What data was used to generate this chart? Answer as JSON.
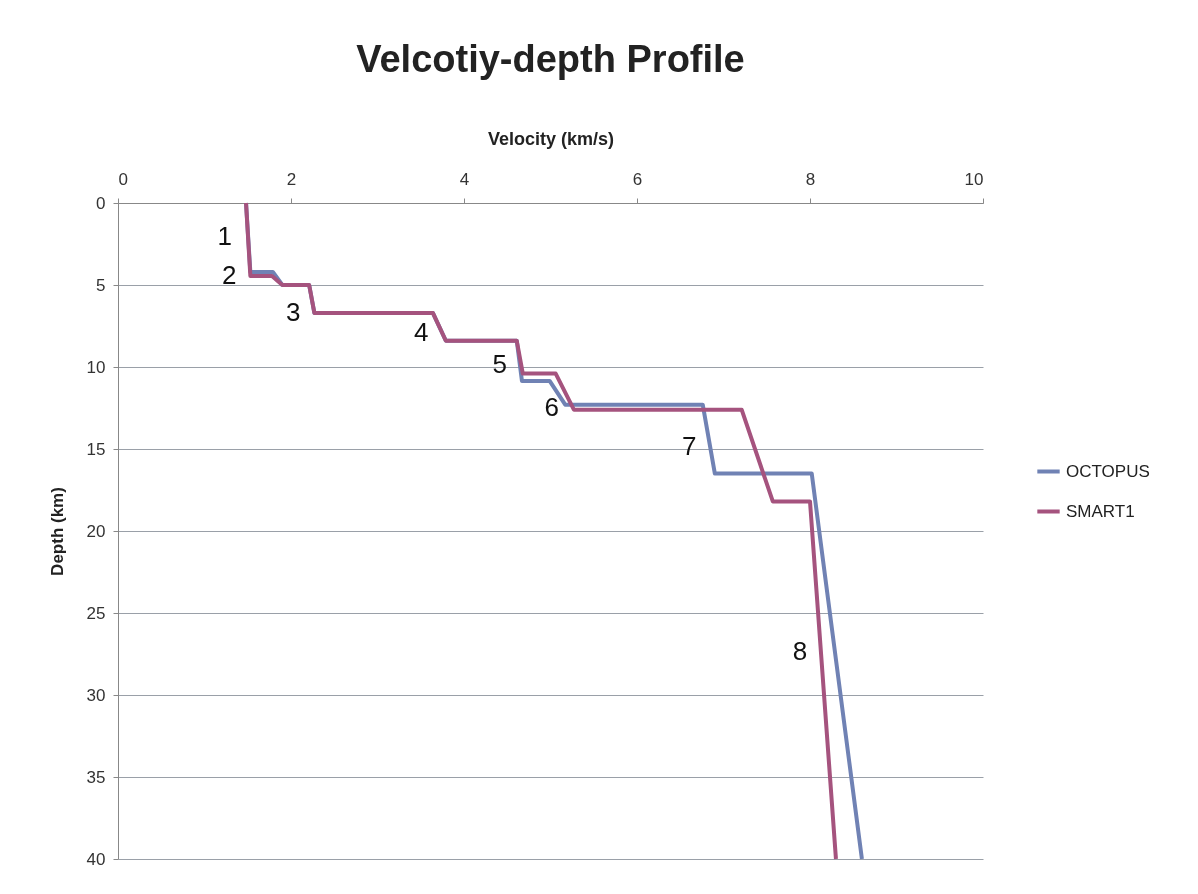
{
  "chart_data": {
    "type": "line",
    "title": "Velcotiy-depth Profile",
    "xlabel": "Velocity (km/s)",
    "ylabel": "Depth (km)",
    "xlim": [
      0,
      10
    ],
    "xticks": [
      0,
      2,
      4,
      6,
      8,
      10
    ],
    "ylim": [
      40,
      0
    ],
    "yticks": [
      0,
      5,
      10,
      15,
      20,
      25,
      30,
      35,
      40
    ],
    "grid": "y",
    "legend": "right",
    "series": [
      {
        "name": "OCTOPUS",
        "color": "#7082b4",
        "x": [
          1.48,
          1.53,
          1.79,
          1.9,
          2.21,
          2.27,
          3.64,
          3.79,
          4.61,
          4.67,
          4.99,
          5.17,
          6.76,
          6.9,
          8.02,
          8.6
        ],
        "values": [
          0,
          4.2,
          4.2,
          5.0,
          5.0,
          6.7,
          6.7,
          8.4,
          8.4,
          10.85,
          10.85,
          12.3,
          12.3,
          16.5,
          16.5,
          40
        ]
      },
      {
        "name": "SMART1",
        "color": "#a5537e",
        "x": [
          1.48,
          1.53,
          1.78,
          1.9,
          2.21,
          2.27,
          3.64,
          3.79,
          4.61,
          4.68,
          5.06,
          5.27,
          7.21,
          7.57,
          8.0,
          8.3
        ],
        "values": [
          0,
          4.45,
          4.45,
          5.0,
          5.0,
          6.7,
          6.7,
          8.4,
          8.4,
          10.4,
          10.4,
          12.6,
          12.6,
          18.2,
          18.2,
          40
        ]
      }
    ],
    "annotations": [
      {
        "text": "1",
        "x": 1.48,
        "y": 2.1
      },
      {
        "text": "2",
        "x": 1.53,
        "y": 4.45
      },
      {
        "text": "3",
        "x": 2.27,
        "y": 6.7
      },
      {
        "text": "4",
        "x": 3.75,
        "y": 7.9
      },
      {
        "text": "5",
        "x": 4.66,
        "y": 9.9
      },
      {
        "text": "6",
        "x": 5.26,
        "y": 12.5
      },
      {
        "text": "7",
        "x": 6.85,
        "y": 14.9
      },
      {
        "text": "8",
        "x": 8.13,
        "y": 27.4
      }
    ]
  }
}
